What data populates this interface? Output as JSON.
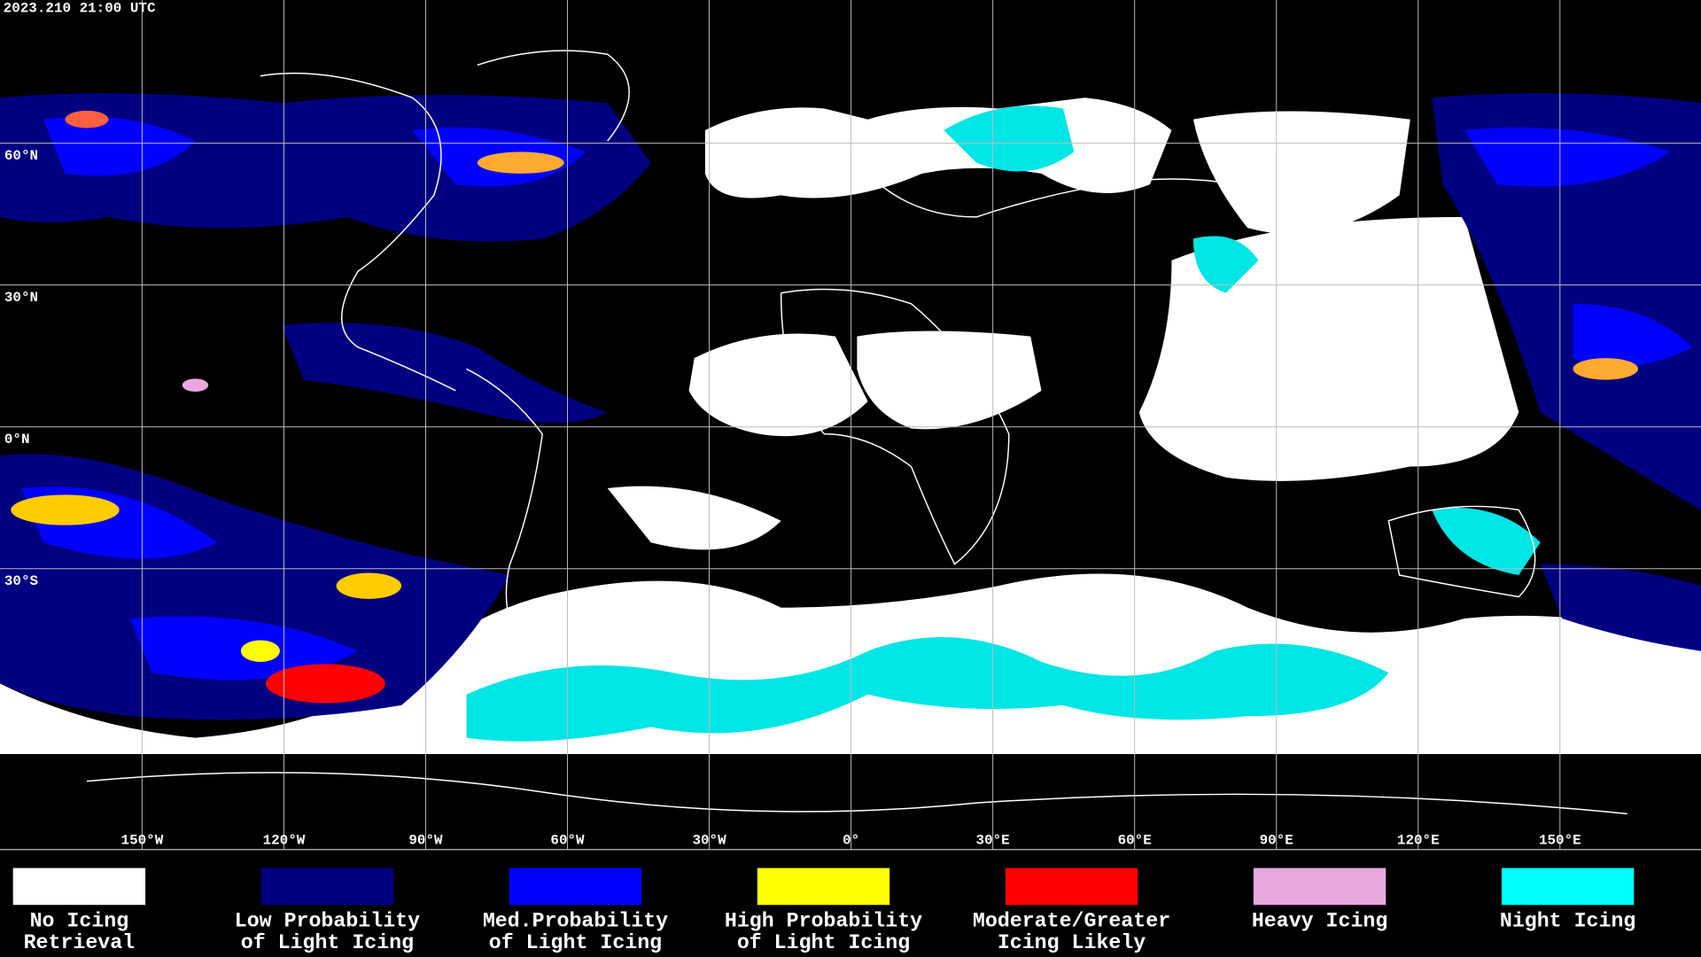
{
  "timestamp": "2023.210 21:00 UTC",
  "latitude_labels": [
    "60°N",
    "30°N",
    "0°N",
    "30°S"
  ],
  "longitude_labels": [
    "150°W",
    "120°W",
    "90°W",
    "60°W",
    "30°W",
    "0°",
    "30°E",
    "60°E",
    "90°E",
    "120°E",
    "150°E"
  ],
  "legend": [
    {
      "lines": [
        "No Icing",
        "Retrieval"
      ],
      "color": "#ffffff"
    },
    {
      "lines": [
        "Low Probability",
        "of Light Icing"
      ],
      "color": "#000080"
    },
    {
      "lines": [
        "Med.Probability",
        "of Light Icing"
      ],
      "color": "#0000ff"
    },
    {
      "lines": [
        "High Probability",
        "of Light Icing"
      ],
      "color": "#ffff00"
    },
    {
      "lines": [
        "Moderate/Greater",
        "Icing Likely"
      ],
      "color": "#ff0000"
    },
    {
      "lines": [
        "Heavy Icing"
      ],
      "color": "#e8a8e0"
    },
    {
      "lines": [
        "Night Icing"
      ],
      "color": "#00ffff"
    }
  ]
}
